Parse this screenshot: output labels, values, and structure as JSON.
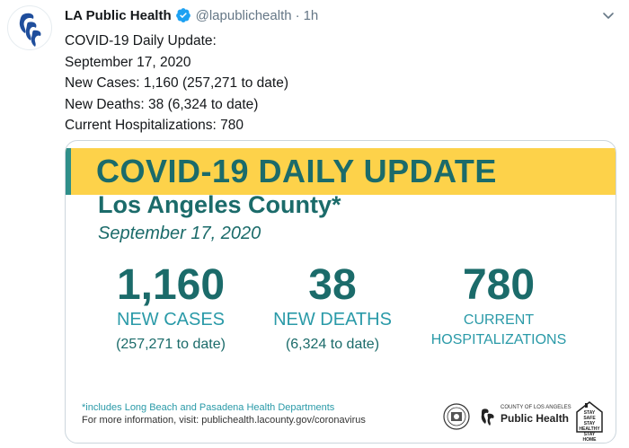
{
  "account": {
    "name": "LA Public Health",
    "handle": "@lapublichealth",
    "separator": "·",
    "time": "1h"
  },
  "tweet": {
    "lines": [
      "COVID-19 Daily Update:",
      "September 17, 2020",
      "New Cases: 1,160 (257,271 to date)",
      "New Deaths: 38 (6,324 to date)",
      "Current Hospitalizations: 780"
    ]
  },
  "card": {
    "title_part1": "COVID-19",
    "title_part2": " DAILY UPDATE",
    "county": "Los Angeles County*",
    "date": "September 17, 2020",
    "stats": {
      "cases": {
        "value": "1,160",
        "label": "NEW CASES",
        "sub": "(257,271 to date)"
      },
      "deaths": {
        "value": "38",
        "label": "NEW DEATHS",
        "sub": "(6,324 to date)"
      },
      "hospitalizations": {
        "value": "780",
        "label_line1": "CURRENT",
        "label_line2": "HOSPITALIZATIONS"
      }
    },
    "footnote": "*includes Long Beach and Pasadena Health Departments",
    "info": "For more information, visit: publichealth.lacounty.gov/coronavirus",
    "logo": {
      "small": "COUNTY OF LOS ANGELES",
      "big": "Public Health"
    },
    "stay_home": [
      "STAY SAFE",
      "STAY HEALTHY",
      "STAY HOME"
    ]
  },
  "colors": {
    "teal": "#1b6b6a",
    "banner_yellow": "#fdd24a",
    "link_teal": "#2a9aa8",
    "verified_blue": "#1da1f2",
    "secondary_text": "#657786"
  },
  "icons": {
    "avatar": "la-public-health-logo",
    "verified": "verified-badge-icon",
    "menu": "chevron-down-icon"
  }
}
